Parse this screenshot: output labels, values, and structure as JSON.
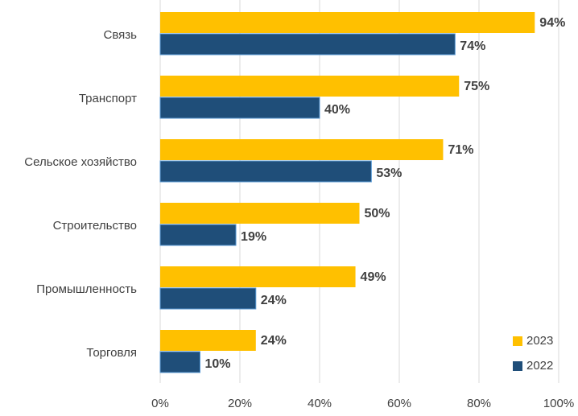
{
  "chart_data": {
    "type": "hbar",
    "categories": [
      "Связь",
      "Транспорт",
      "Сельское хозяйство",
      "Строительство",
      "Промышленность",
      "Торговля"
    ],
    "series": [
      {
        "name": "2023",
        "color": "#ffc000",
        "values": [
          94,
          75,
          71,
          50,
          49,
          24
        ],
        "value_labels": [
          "94%",
          "75%",
          "71%",
          "50%",
          "49%",
          "24%"
        ]
      },
      {
        "name": "2022",
        "color": "#1f4e79",
        "values": [
          74,
          40,
          53,
          19,
          24,
          10
        ],
        "value_labels": [
          "74%",
          "40%",
          "53%",
          "19%",
          "24%",
          "10%"
        ]
      }
    ],
    "xlim": [
      0,
      100
    ],
    "xticks": [
      {
        "value": 0,
        "label": "0%"
      },
      {
        "value": 20,
        "label": "20%"
      },
      {
        "value": 40,
        "label": "40%"
      },
      {
        "value": 60,
        "label": "60%"
      },
      {
        "value": 80,
        "label": "80%"
      },
      {
        "value": 100,
        "label": "100%"
      }
    ],
    "grid": true,
    "legend": "lower right"
  }
}
